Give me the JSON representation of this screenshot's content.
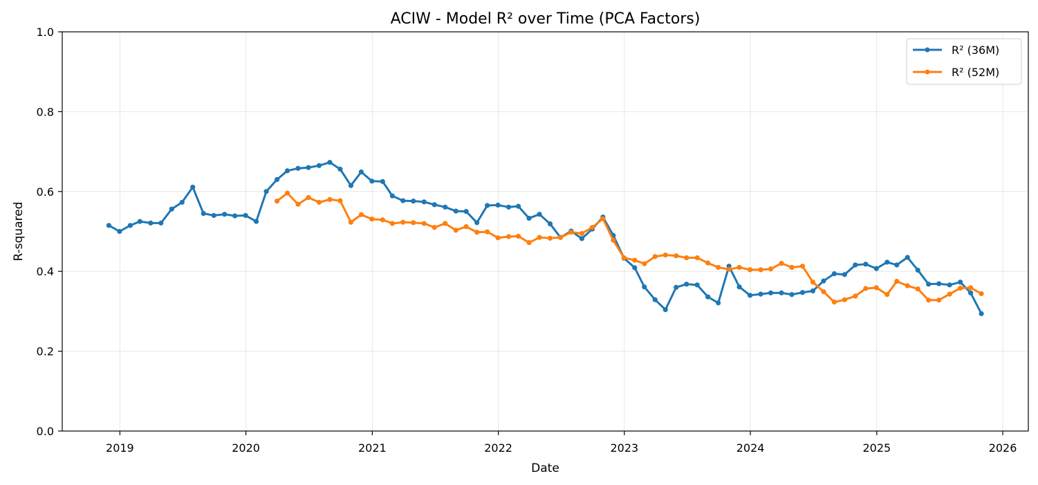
{
  "chart_data": {
    "type": "line",
    "title": "ACIW - Model R² over Time (PCA Factors)",
    "xlabel": "Date",
    "ylabel": "R-squared",
    "xlim": [
      "2018-07-18",
      "2026-03-16"
    ],
    "ylim": [
      0,
      1
    ],
    "x_ticks": [
      "2019",
      "2020",
      "2021",
      "2022",
      "2023",
      "2024",
      "2025",
      "2026"
    ],
    "y_ticks": [
      "0.0",
      "0.2",
      "0.4",
      "0.6",
      "0.8",
      "1.0"
    ],
    "grid": true,
    "legend_position": "top-right",
    "series": [
      {
        "name": "R² (36M)",
        "color": "#1f77b4",
        "x": [
          "2018-11-30",
          "2018-12-31",
          "2019-01-31",
          "2019-02-28",
          "2019-03-31",
          "2019-04-30",
          "2019-05-31",
          "2019-06-30",
          "2019-07-31",
          "2019-08-31",
          "2019-09-30",
          "2019-10-31",
          "2019-11-30",
          "2019-12-31",
          "2020-01-31",
          "2020-02-29",
          "2020-03-31",
          "2020-04-30",
          "2020-05-31",
          "2020-06-30",
          "2020-07-31",
          "2020-08-31",
          "2020-09-30",
          "2020-10-31",
          "2020-11-30",
          "2020-12-31",
          "2021-01-31",
          "2021-02-28",
          "2021-03-31",
          "2021-04-30",
          "2021-05-31",
          "2021-06-30",
          "2021-07-31",
          "2021-08-31",
          "2021-09-30",
          "2021-10-31",
          "2021-11-30",
          "2021-12-31",
          "2022-01-31",
          "2022-02-28",
          "2022-03-31",
          "2022-04-30",
          "2022-05-31",
          "2022-06-30",
          "2022-07-31",
          "2022-08-31",
          "2022-09-30",
          "2022-10-31",
          "2022-11-30",
          "2022-12-31",
          "2023-01-31",
          "2023-02-28",
          "2023-03-31",
          "2023-04-30",
          "2023-05-31",
          "2023-06-30",
          "2023-07-31",
          "2023-08-31",
          "2023-09-30",
          "2023-10-31",
          "2023-11-30",
          "2023-12-31",
          "2024-01-31",
          "2024-02-29",
          "2024-03-31",
          "2024-04-30",
          "2024-05-31",
          "2024-06-30",
          "2024-07-31",
          "2024-08-31",
          "2024-09-30",
          "2024-10-31",
          "2024-11-30",
          "2024-12-31",
          "2025-01-31",
          "2025-02-28",
          "2025-03-31",
          "2025-04-30",
          "2025-05-31",
          "2025-06-30",
          "2025-07-31",
          "2025-08-31",
          "2025-09-30",
          "2025-10-31"
        ],
        "values": [
          0.515,
          0.5,
          0.515,
          0.525,
          0.521,
          0.521,
          0.556,
          0.573,
          0.611,
          0.545,
          0.54,
          0.543,
          0.539,
          0.54,
          0.525,
          0.6,
          0.63,
          0.652,
          0.658,
          0.66,
          0.665,
          0.673,
          0.656,
          0.615,
          0.649,
          0.626,
          0.625,
          0.589,
          0.577,
          0.576,
          0.574,
          0.567,
          0.561,
          0.551,
          0.55,
          0.522,
          0.565,
          0.566,
          0.561,
          0.563,
          0.533,
          0.543,
          0.519,
          0.485,
          0.501,
          0.482,
          0.506,
          0.536,
          0.49,
          0.433,
          0.409,
          0.361,
          0.329,
          0.304,
          0.36,
          0.368,
          0.366,
          0.336,
          0.321,
          0.413,
          0.361,
          0.34,
          0.343,
          0.346,
          0.346,
          0.342,
          0.347,
          0.351,
          0.376,
          0.394,
          0.392,
          0.416,
          0.418,
          0.407,
          0.423,
          0.416,
          0.435,
          0.403,
          0.368,
          0.369,
          0.366,
          0.373,
          0.346,
          0.294
        ]
      },
      {
        "name": "R² (52M)",
        "color": "#ff7f0e",
        "x": [
          "2020-03-31",
          "2020-04-30",
          "2020-05-31",
          "2020-06-30",
          "2020-07-31",
          "2020-08-31",
          "2020-09-30",
          "2020-10-31",
          "2020-11-30",
          "2020-12-31",
          "2021-01-31",
          "2021-02-28",
          "2021-03-31",
          "2021-04-30",
          "2021-05-31",
          "2021-06-30",
          "2021-07-31",
          "2021-08-31",
          "2021-09-30",
          "2021-10-31",
          "2021-11-30",
          "2021-12-31",
          "2022-01-31",
          "2022-02-28",
          "2022-03-31",
          "2022-04-30",
          "2022-05-31",
          "2022-06-30",
          "2022-07-31",
          "2022-08-31",
          "2022-09-30",
          "2022-10-31",
          "2022-11-30",
          "2022-12-31",
          "2023-01-31",
          "2023-02-28",
          "2023-03-31",
          "2023-04-30",
          "2023-05-31",
          "2023-06-30",
          "2023-07-31",
          "2023-08-31",
          "2023-09-30",
          "2023-10-31",
          "2023-11-30",
          "2023-12-31",
          "2024-01-31",
          "2024-02-29",
          "2024-03-31",
          "2024-04-30",
          "2024-05-31",
          "2024-06-30",
          "2024-07-31",
          "2024-08-31",
          "2024-09-30",
          "2024-10-31",
          "2024-11-30",
          "2024-12-31",
          "2025-01-31",
          "2025-02-28",
          "2025-03-31",
          "2025-04-30",
          "2025-05-31",
          "2025-06-30",
          "2025-07-31",
          "2025-08-31",
          "2025-09-30",
          "2025-10-31"
        ],
        "values": [
          0.576,
          0.596,
          0.568,
          0.585,
          0.573,
          0.58,
          0.577,
          0.523,
          0.542,
          0.531,
          0.529,
          0.52,
          0.523,
          0.522,
          0.52,
          0.51,
          0.52,
          0.503,
          0.512,
          0.498,
          0.499,
          0.484,
          0.487,
          0.488,
          0.472,
          0.485,
          0.483,
          0.485,
          0.498,
          0.495,
          0.51,
          0.532,
          0.478,
          0.434,
          0.428,
          0.419,
          0.437,
          0.441,
          0.439,
          0.434,
          0.434,
          0.421,
          0.41,
          0.405,
          0.41,
          0.404,
          0.404,
          0.406,
          0.42,
          0.41,
          0.413,
          0.373,
          0.349,
          0.323,
          0.329,
          0.338,
          0.357,
          0.359,
          0.342,
          0.375,
          0.364,
          0.356,
          0.328,
          0.328,
          0.343,
          0.358,
          0.359,
          0.344
        ]
      }
    ]
  }
}
